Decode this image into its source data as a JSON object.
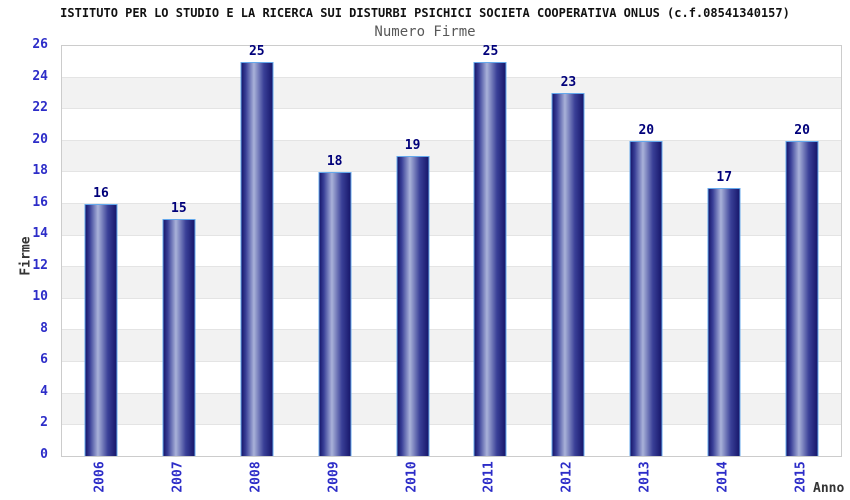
{
  "chart_data": {
    "type": "bar",
    "title": "ISTITUTO PER LO STUDIO E LA RICERCA SUI DISTURBI PSICHICI SOCIETA COOPERATIVA ONLUS (c.f.08541340157)",
    "subtitle": "Numero Firme",
    "xlabel": "Anno",
    "ylabel": "Firme",
    "categories": [
      "2006",
      "2007",
      "2008",
      "2009",
      "2010",
      "2011",
      "2012",
      "2013",
      "2014",
      "2015"
    ],
    "values": [
      16,
      15,
      25,
      18,
      19,
      25,
      23,
      20,
      17,
      20
    ],
    "ylim": [
      0,
      26
    ],
    "ytick_step": 2,
    "grid": true,
    "legend": false,
    "bar_value_labels_shown": true,
    "x_tick_rotation_deg": -90
  },
  "colors": {
    "title_text": "#111111",
    "subtitle_text": "#585858",
    "axis_label_text": "#333333",
    "tick_text": "#2d2dc8",
    "value_label": "#00007a",
    "band_alt": "#f2f2f2",
    "grid_line": "#e4e4e4",
    "plot_border": "#cccccc",
    "bar_dark": "#17176b",
    "bar_mid": "#3a4098",
    "bar_highlight": "#a9b2d9",
    "bar_border": "#64a8ec"
  }
}
